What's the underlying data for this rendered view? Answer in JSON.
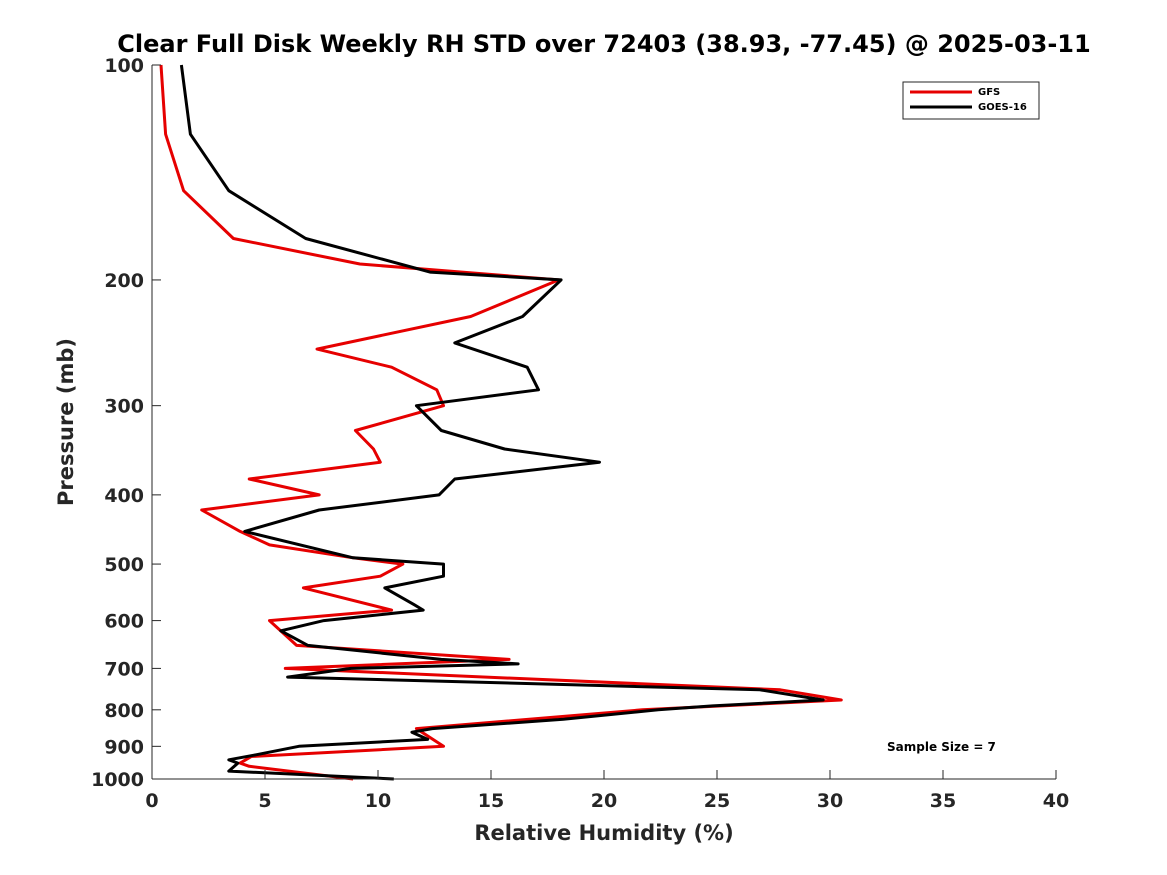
{
  "chart_data": {
    "type": "line",
    "title": "Clear Full Disk Weekly RH STD over 72403 (38.93, -77.45) @ 2025-03-11",
    "xlabel": "Relative Humidity (%)",
    "ylabel": "Pressure (mb)",
    "xlim": [
      0,
      40
    ],
    "ylim": [
      100,
      1000
    ],
    "y_scale": "log",
    "y_reversed": true,
    "grid": false,
    "legend_position": "top-right",
    "x_ticks": [
      "0",
      "5",
      "10",
      "15",
      "20",
      "25",
      "30",
      "35",
      "40"
    ],
    "y_ticks": [
      "100",
      "200",
      "300",
      "400",
      "500",
      "600",
      "700",
      "800",
      "900",
      "1000"
    ],
    "annotation": "Sample Size = 7",
    "series": [
      {
        "name": "GFS",
        "color": "#e60000",
        "points": [
          [
            0.4,
            100
          ],
          [
            0.6,
            125
          ],
          [
            1.4,
            150
          ],
          [
            3.6,
            175
          ],
          [
            9.2,
            190
          ],
          [
            18.0,
            200
          ],
          [
            14.1,
            225
          ],
          [
            7.3,
            250
          ],
          [
            10.6,
            265
          ],
          [
            12.6,
            285
          ],
          [
            12.9,
            300
          ],
          [
            9.0,
            325
          ],
          [
            9.8,
            345
          ],
          [
            10.1,
            360
          ],
          [
            4.3,
            380
          ],
          [
            7.4,
            400
          ],
          [
            2.2,
            420
          ],
          [
            3.9,
            450
          ],
          [
            5.2,
            470
          ],
          [
            8.9,
            490
          ],
          [
            11.1,
            500
          ],
          [
            10.1,
            520
          ],
          [
            6.7,
            540
          ],
          [
            10.6,
            580
          ],
          [
            5.2,
            600
          ],
          [
            6.4,
            650
          ],
          [
            15.8,
            680
          ],
          [
            5.9,
            700
          ],
          [
            27.8,
            750
          ],
          [
            30.5,
            775
          ],
          [
            21.7,
            800
          ],
          [
            11.7,
            850
          ],
          [
            12.9,
            900
          ],
          [
            4.4,
            930
          ],
          [
            3.9,
            950
          ],
          [
            4.3,
            960
          ],
          [
            8.9,
            1000
          ]
        ]
      },
      {
        "name": "GOES-16",
        "color": "#000000",
        "points": [
          [
            1.3,
            100
          ],
          [
            1.7,
            125
          ],
          [
            3.4,
            150
          ],
          [
            6.8,
            175
          ],
          [
            12.3,
            195
          ],
          [
            18.1,
            200
          ],
          [
            16.4,
            225
          ],
          [
            13.4,
            245
          ],
          [
            16.6,
            265
          ],
          [
            17.1,
            285
          ],
          [
            11.7,
            300
          ],
          [
            12.8,
            325
          ],
          [
            15.6,
            345
          ],
          [
            19.8,
            360
          ],
          [
            13.4,
            380
          ],
          [
            12.7,
            400
          ],
          [
            7.4,
            420
          ],
          [
            4.1,
            450
          ],
          [
            8.9,
            490
          ],
          [
            12.9,
            500
          ],
          [
            12.9,
            520
          ],
          [
            10.3,
            540
          ],
          [
            11.6,
            570
          ],
          [
            12.0,
            580
          ],
          [
            7.6,
            600
          ],
          [
            5.7,
            620
          ],
          [
            6.9,
            650
          ],
          [
            12.8,
            680
          ],
          [
            16.2,
            690
          ],
          [
            8.8,
            700
          ],
          [
            6.0,
            720
          ],
          [
            26.9,
            750
          ],
          [
            29.7,
            775
          ],
          [
            24.8,
            790
          ],
          [
            22.4,
            800
          ],
          [
            18.2,
            825
          ],
          [
            12.4,
            850
          ],
          [
            11.5,
            860
          ],
          [
            12.2,
            880
          ],
          [
            6.5,
            900
          ],
          [
            4.6,
            925
          ],
          [
            3.4,
            940
          ],
          [
            3.8,
            950
          ],
          [
            3.4,
            975
          ],
          [
            10.7,
            1000
          ]
        ]
      }
    ]
  }
}
